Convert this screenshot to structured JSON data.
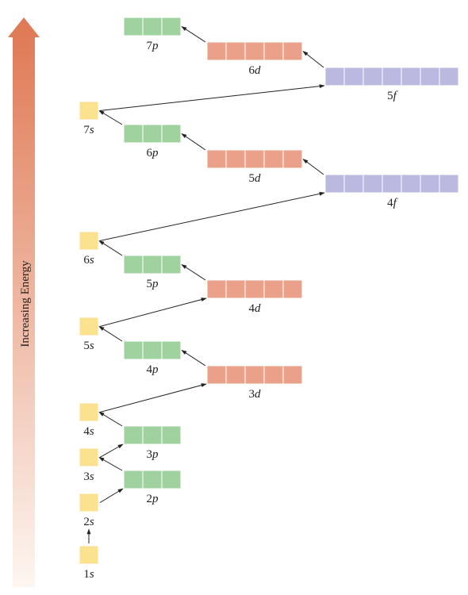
{
  "axis_label": "Increasing Energy",
  "colors": {
    "s": "#fbe28e",
    "p": "#9fd29f",
    "d": "#eba08a",
    "f": "#bcb9e0",
    "arrow_top": "#e07b57",
    "arrow_bottom": "#fdf6f1",
    "cell_border": "#ffffff",
    "connector": "#222222"
  },
  "orbitals": [
    {
      "n": "1",
      "l": "s",
      "boxes": 1
    },
    {
      "n": "2",
      "l": "s",
      "boxes": 1
    },
    {
      "n": "2",
      "l": "p",
      "boxes": 3
    },
    {
      "n": "3",
      "l": "s",
      "boxes": 1
    },
    {
      "n": "3",
      "l": "p",
      "boxes": 3
    },
    {
      "n": "4",
      "l": "s",
      "boxes": 1
    },
    {
      "n": "3",
      "l": "d",
      "boxes": 5
    },
    {
      "n": "4",
      "l": "p",
      "boxes": 3
    },
    {
      "n": "5",
      "l": "s",
      "boxes": 1
    },
    {
      "n": "4",
      "l": "d",
      "boxes": 5
    },
    {
      "n": "5",
      "l": "p",
      "boxes": 3
    },
    {
      "n": "6",
      "l": "s",
      "boxes": 1
    },
    {
      "n": "4",
      "l": "f",
      "boxes": 7
    },
    {
      "n": "5",
      "l": "d",
      "boxes": 5
    },
    {
      "n": "6",
      "l": "p",
      "boxes": 3
    },
    {
      "n": "7",
      "l": "s",
      "boxes": 1
    },
    {
      "n": "5",
      "l": "f",
      "boxes": 7
    },
    {
      "n": "6",
      "l": "d",
      "boxes": 5
    },
    {
      "n": "7",
      "l": "p",
      "boxes": 3
    }
  ]
}
